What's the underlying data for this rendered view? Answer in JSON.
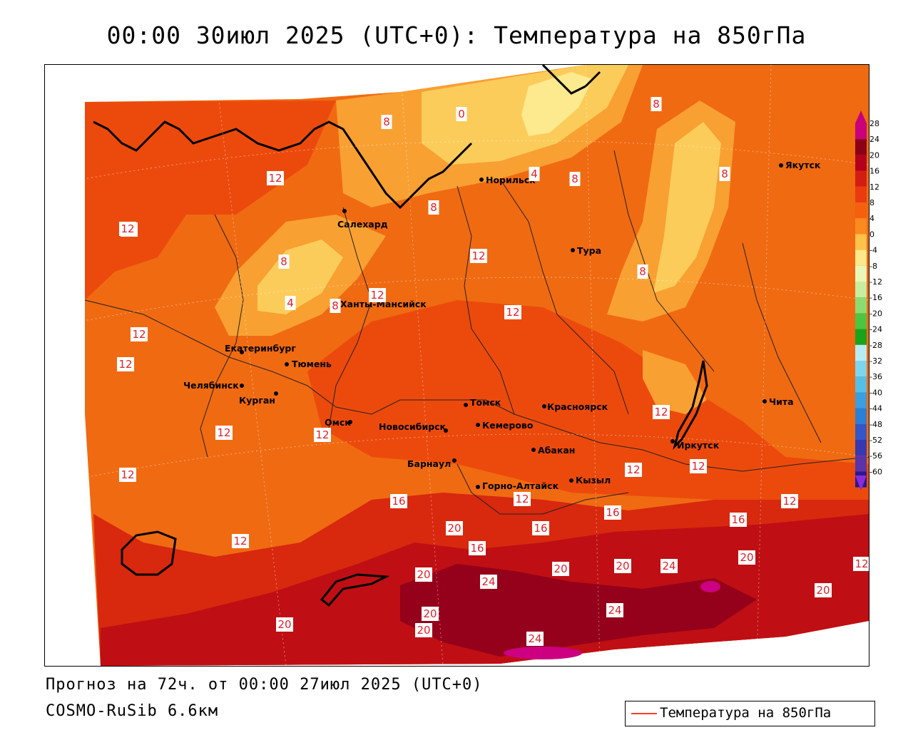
{
  "title": "00:00 30июл 2025 (UTC+0): Температура на 850гПа",
  "forecast_info": "Прогноз на 72ч. от 00:00 27июл 2025 (UTC+0)",
  "model_info": "COSMO-RuSib 6.6км",
  "legend": {
    "label": "Температура на 850гПа",
    "line_color": "#ff3a2a"
  },
  "colorbar": {
    "ticks": [
      "28",
      "24",
      "20",
      "16",
      "12",
      "8",
      "4",
      "0",
      "-4",
      "-8",
      "-12",
      "-16",
      "-20",
      "-24",
      "-28",
      "-32",
      "-36",
      "-40",
      "-44",
      "-48",
      "-52",
      "-56",
      "-60"
    ],
    "colors": [
      "#c8007a",
      "#8b0016",
      "#b4001c",
      "#d21d14",
      "#ea3a10",
      "#f5600e",
      "#fb8a20",
      "#fcc24a",
      "#fde98c",
      "#e9f6b8",
      "#c7eda0",
      "#8ddb70",
      "#4ec540",
      "#1aa31a",
      "#b7ecf2",
      "#7ed6ee",
      "#56bfe6",
      "#3a9ee0",
      "#2a7fd6",
      "#3456c8",
      "#3838b0",
      "#5a34a8",
      "#2a1890"
    ],
    "top_arrow_color": "#c8007a",
    "bottom_arrow_color": "#8a2bd8"
  },
  "cities": [
    {
      "name": "Якутск"
    },
    {
      "name": "Норильск"
    },
    {
      "name": "Салехард"
    },
    {
      "name": "Тура"
    },
    {
      "name": "Ханты-Мансийск"
    },
    {
      "name": "Екатеринбург"
    },
    {
      "name": "Тюмень"
    },
    {
      "name": "Челябинск"
    },
    {
      "name": "Курган"
    },
    {
      "name": "Омск"
    },
    {
      "name": "Томск"
    },
    {
      "name": "Красноярск"
    },
    {
      "name": "Новосибирск"
    },
    {
      "name": "Кемерово"
    },
    {
      "name": "Абакан"
    },
    {
      "name": "Иркутск"
    },
    {
      "name": "Барнаул"
    },
    {
      "name": "Горно-Алтайск"
    },
    {
      "name": "Кызыл"
    },
    {
      "name": "Чита"
    }
  ],
  "contour_labels": [
    {
      "text": "12"
    },
    {
      "text": "12"
    },
    {
      "text": "8"
    },
    {
      "text": "0"
    },
    {
      "text": "8"
    },
    {
      "text": "8"
    },
    {
      "text": "4"
    },
    {
      "text": "8"
    },
    {
      "text": "8"
    },
    {
      "text": "12"
    },
    {
      "text": "8"
    },
    {
      "text": "4"
    },
    {
      "text": "8"
    },
    {
      "text": "12"
    },
    {
      "text": "12"
    },
    {
      "text": "8"
    },
    {
      "text": "12"
    },
    {
      "text": "12"
    },
    {
      "text": "12"
    },
    {
      "text": "12"
    },
    {
      "text": "12"
    },
    {
      "text": "12"
    },
    {
      "text": "12"
    },
    {
      "text": "12"
    },
    {
      "text": "12"
    },
    {
      "text": "16"
    },
    {
      "text": "20"
    },
    {
      "text": "16"
    },
    {
      "text": "16"
    },
    {
      "text": "16"
    },
    {
      "text": "16"
    },
    {
      "text": "20"
    },
    {
      "text": "20"
    },
    {
      "text": "24"
    },
    {
      "text": "20"
    },
    {
      "text": "20"
    },
    {
      "text": "24"
    },
    {
      "text": "24"
    },
    {
      "text": "20"
    },
    {
      "text": "20"
    },
    {
      "text": "24"
    },
    {
      "text": "20"
    },
    {
      "text": "20"
    },
    {
      "text": "12"
    },
    {
      "text": "12"
    },
    {
      "text": "12"
    },
    {
      "text": "12"
    }
  ]
}
